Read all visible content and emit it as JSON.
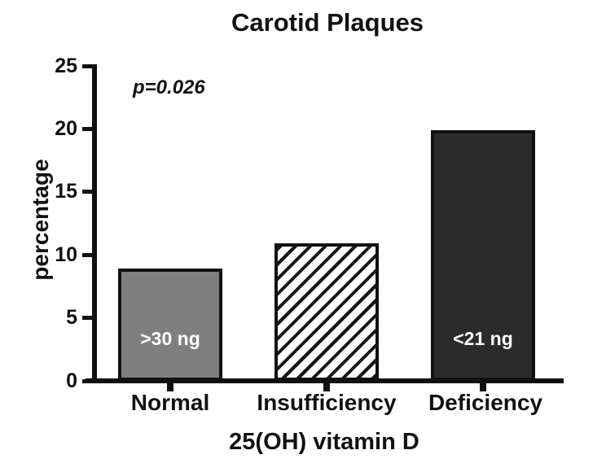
{
  "chart_data": {
    "type": "bar",
    "title": "Carotid Plaques",
    "annotation": "p=0.026",
    "xlabel": "25(OH) vitamin D",
    "ylabel": "percentage",
    "categories": [
      "Normal",
      "Insufficiency",
      "Deficiency"
    ],
    "values": [
      8.9,
      10.9,
      19.9
    ],
    "bar_labels": [
      ">30 ng",
      "",
      "<21 ng"
    ],
    "bar_styles": [
      "solid-gray",
      "diagonal-hatch",
      "solid-dark"
    ],
    "ylim": [
      0,
      25
    ],
    "yticks": [
      0,
      5,
      10,
      15,
      20,
      25
    ],
    "grid": false,
    "legend": "none",
    "colors": {
      "gray_bar": "#7f7f7f",
      "dark_bar": "#2b2b2b",
      "hatch_line": "#161616",
      "axis_and_text": "#111111",
      "bar_label_text": "#ffffff",
      "background": "#ffffff"
    }
  }
}
